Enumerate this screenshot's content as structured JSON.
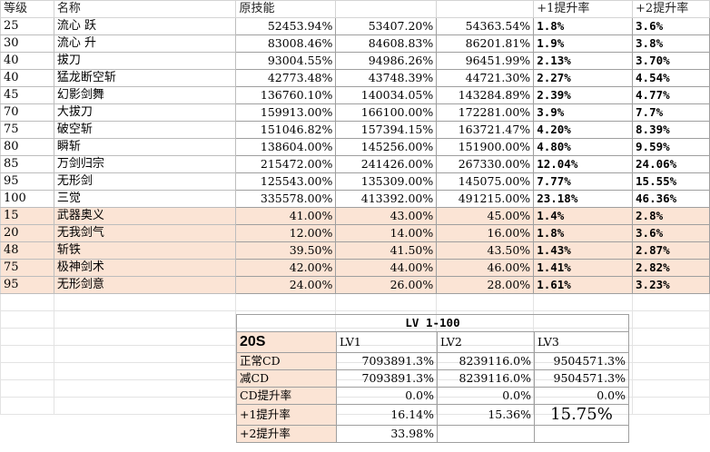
{
  "headers": [
    "等级",
    "名称",
    "原技能",
    "",
    "",
    "+1提升率",
    "+2提升率"
  ],
  "rows": [
    {
      "level": "25",
      "name": "流心 跃",
      "v0": "52453.94%",
      "v1": "53407.20%",
      "v2": "54363.54%",
      "r1": "1.8%",
      "r2": "3.6%",
      "shaded": false
    },
    {
      "level": "30",
      "name": "流心 升",
      "v0": "83008.46%",
      "v1": "84608.83%",
      "v2": "86201.81%",
      "r1": "1.9%",
      "r2": "3.8%",
      "shaded": false
    },
    {
      "level": "40",
      "name": "拔刀",
      "v0": "93004.55%",
      "v1": "94986.26%",
      "v2": "96451.99%",
      "r1": "2.13%",
      "r2": "3.70%",
      "shaded": false
    },
    {
      "level": "40",
      "name": "猛龙断空斩",
      "v0": "42773.48%",
      "v1": "43748.39%",
      "v2": "44721.30%",
      "r1": "2.27%",
      "r2": "4.54%",
      "shaded": false
    },
    {
      "level": "45",
      "name": "幻影剑舞",
      "v0": "136760.10%",
      "v1": "140034.05%",
      "v2": "143284.89%",
      "r1": "2.39%",
      "r2": "4.77%",
      "shaded": false
    },
    {
      "level": "70",
      "name": "大拔刀",
      "v0": "159913.00%",
      "v1": "166100.00%",
      "v2": "172281.00%",
      "r1": "3.9%",
      "r2": "7.7%",
      "shaded": false
    },
    {
      "level": "75",
      "name": "破空斩",
      "v0": "151046.82%",
      "v1": "157394.15%",
      "v2": "163721.47%",
      "r1": "4.20%",
      "r2": "8.39%",
      "shaded": false
    },
    {
      "level": "80",
      "name": "瞬斩",
      "v0": "138604.00%",
      "v1": "145256.00%",
      "v2": "151900.00%",
      "r1": "4.80%",
      "r2": "9.59%",
      "shaded": false
    },
    {
      "level": "85",
      "name": "万剑归宗",
      "v0": "215472.00%",
      "v1": "241426.00%",
      "v2": "267330.00%",
      "r1": "12.04%",
      "r2": "24.06%",
      "shaded": false
    },
    {
      "level": "95",
      "name": "无形剑",
      "v0": "125543.00%",
      "v1": "135309.00%",
      "v2": "145075.00%",
      "r1": "7.77%",
      "r2": "15.55%",
      "shaded": false
    },
    {
      "level": "100",
      "name": "三觉",
      "v0": "335578.00%",
      "v1": "413392.00%",
      "v2": "491215.00%",
      "r1": "23.18%",
      "r2": "46.36%",
      "shaded": false
    },
    {
      "level": "15",
      "name": "武器奥义",
      "v0": "41.00%",
      "v1": "43.00%",
      "v2": "45.00%",
      "r1": "1.4%",
      "r2": "2.8%",
      "shaded": true
    },
    {
      "level": "20",
      "name": "无我剑气",
      "v0": "12.00%",
      "v1": "14.00%",
      "v2": "16.00%",
      "r1": "1.8%",
      "r2": "3.6%",
      "shaded": true
    },
    {
      "level": "48",
      "name": "斩铁",
      "v0": "39.50%",
      "v1": "41.50%",
      "v2": "43.50%",
      "r1": "1.43%",
      "r2": "2.87%",
      "shaded": true
    },
    {
      "level": "75",
      "name": "极神剑术",
      "v0": "42.00%",
      "v1": "44.00%",
      "v2": "46.00%",
      "r1": "1.41%",
      "r2": "2.82%",
      "shaded": true
    },
    {
      "level": "95",
      "name": "无形剑意",
      "v0": "24.00%",
      "v1": "26.00%",
      "v2": "28.00%",
      "r1": "1.61%",
      "r2": "3.23%",
      "shaded": true
    }
  ],
  "summary": {
    "title": "LV 1-100",
    "header": {
      "label": "20S",
      "lv1": "LV1",
      "lv2": "LV2",
      "lv3": "LV3"
    },
    "rows": [
      {
        "label": "正常CD",
        "lv1": "7093891.3%",
        "lv2": "8239116.0%",
        "lv3": "9504571.3%"
      },
      {
        "label": "减CD",
        "lv1": "7093891.3%",
        "lv2": "8239116.0%",
        "lv3": "9504571.3%"
      },
      {
        "label": "CD提升率",
        "lv1": "0.0%",
        "lv2": "0.0%",
        "lv3": "0.0%"
      },
      {
        "label": "+1提升率",
        "lv1": "16.14%",
        "lv2": "15.36%",
        "lv3": "15.75%"
      },
      {
        "label": "+2提升率",
        "lv1": "33.98%",
        "lv2": "",
        "": "",
        "lv3": ""
      }
    ]
  }
}
